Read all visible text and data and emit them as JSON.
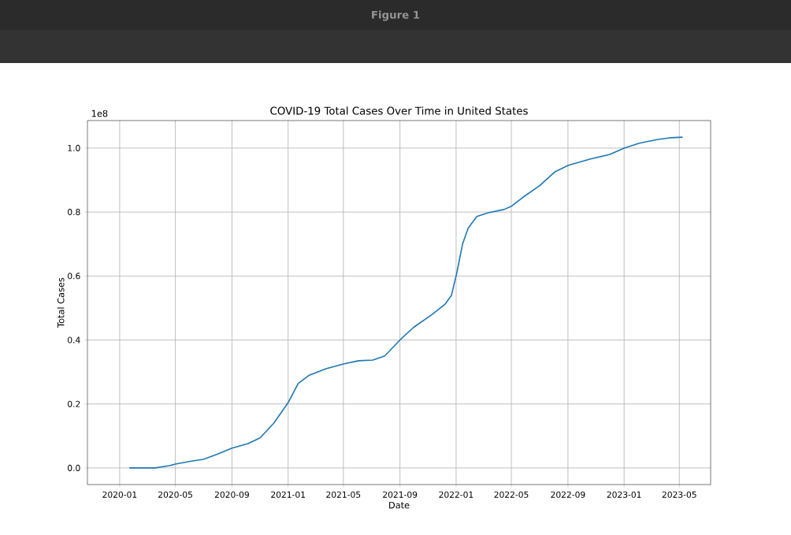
{
  "chart_data": {
    "type": "line",
    "title": "COVID-19 Total Cases Over Time in United States",
    "xlabel": "Date",
    "ylabel": "Total Cases",
    "annotations": [
      "1e8",
      "Figure 1"
    ],
    "x": [
      "2020-01-22",
      "2020-03-18",
      "2020-04-18",
      "2020-05-01",
      "2020-05-31",
      "2020-07-01",
      "2020-08-02",
      "2020-09-01",
      "2020-10-06",
      "2020-11-01",
      "2020-12-01",
      "2021-01-01",
      "2021-01-23",
      "2021-02-16",
      "2021-03-24",
      "2021-05-01",
      "2021-06-03",
      "2021-07-04",
      "2021-07-30",
      "2021-09-01",
      "2021-10-01",
      "2021-11-08",
      "2021-12-08",
      "2021-12-22",
      "2022-01-03",
      "2022-01-15",
      "2022-01-27",
      "2022-02-15",
      "2022-03-12",
      "2022-04-15",
      "2022-05-01",
      "2022-05-27",
      "2022-07-01",
      "2022-08-04",
      "2022-09-02",
      "2022-10-20",
      "2022-12-01",
      "2023-01-01",
      "2023-02-03",
      "2023-03-15",
      "2023-04-10",
      "2023-05-08"
    ],
    "series": [
      {
        "color": "#1f77b4",
        "values": [
          0,
          0,
          0.007,
          0.012,
          0.02,
          0.027,
          0.044,
          0.062,
          0.076,
          0.094,
          0.14,
          0.204,
          0.264,
          0.29,
          0.31,
          0.325,
          0.335,
          0.337,
          0.35,
          0.4,
          0.44,
          0.478,
          0.512,
          0.54,
          0.613,
          0.7,
          0.749,
          0.786,
          0.798,
          0.808,
          0.818,
          0.847,
          0.882,
          0.926,
          0.946,
          0.966,
          0.98,
          1.0,
          1.015,
          1.027,
          1.032,
          1.034
        ]
      }
    ],
    "xlim": [
      "2019-10-23",
      "2023-07-08"
    ],
    "ylim": [
      -0.052,
      1.086
    ],
    "xticks": [
      "2020-01",
      "2020-05",
      "2020-09",
      "2021-01",
      "2021-05",
      "2021-09",
      "2022-01",
      "2022-05",
      "2022-09",
      "2023-01",
      "2023-05"
    ],
    "yticks": [
      {
        "value": 0,
        "label": "0.0"
      },
      {
        "value": 0.2,
        "label": "0.2"
      },
      {
        "value": 0.4,
        "label": "0.4"
      },
      {
        "value": 0.6,
        "label": "0.6"
      },
      {
        "value": 0.8,
        "label": "0.8"
      },
      {
        "value": 1.0,
        "label": "1.0"
      }
    ],
    "grid": true,
    "marker": "none",
    "line_style": "solid"
  }
}
